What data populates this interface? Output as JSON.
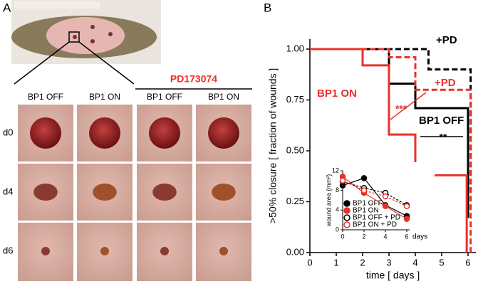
{
  "panel_a": {
    "label": "A",
    "treatment": "PD173074",
    "columns": [
      "BP1 OFF",
      "BP1 ON",
      "BP1 OFF",
      "BP1 ON"
    ],
    "rows": [
      "d0",
      "d4",
      "d6"
    ]
  },
  "panel_b": {
    "label": "B"
  },
  "chart_data": [
    {
      "type": "line",
      "step": true,
      "xlabel": "time [ days ]",
      "ylabel": ">50% closure [ fraction of wounds ]",
      "xlim": [
        0,
        6.3
      ],
      "xticks": [
        0,
        1,
        2,
        3,
        4,
        5,
        6
      ],
      "ylim": [
        0,
        1.05
      ],
      "yticks": [
        {
          "value": 0,
          "label": "0.00"
        },
        {
          "value": 0.25,
          "label": "0.25"
        },
        {
          "value": 0.5,
          "label": "0.50"
        },
        {
          "value": 0.75,
          "label": "0.75"
        },
        {
          "value": 1,
          "label": "1.00"
        }
      ],
      "series": [
        {
          "name": "BP1 OFF",
          "color": "#000000",
          "dashed": false,
          "x": [
            0,
            3,
            4,
            6
          ],
          "values": [
            1,
            0.83,
            0.71,
            0.17
          ]
        },
        {
          "name": "BP1 ON",
          "color": "#e8312a",
          "dashed": false,
          "x": [
            0,
            2,
            3,
            4,
            5.95
          ],
          "values": [
            1,
            0.92,
            0.58,
            0.38,
            0
          ]
        },
        {
          "name": "+PD",
          "color": "#000000",
          "dashed": true,
          "x": [
            0,
            4.5,
            6.1
          ],
          "values": [
            1,
            0.9,
            0.3
          ]
        },
        {
          "name": "+PD",
          "color": "#e8312a",
          "dashed": true,
          "x": [
            0,
            3,
            4,
            6.1
          ],
          "values": [
            1,
            0.96,
            0.8,
            0
          ]
        }
      ],
      "annotations": [
        "***",
        "**"
      ]
    },
    {
      "type": "line",
      "xlabel": "days",
      "ylabel": "wound area (mm²)",
      "xlim": [
        0,
        6
      ],
      "xticks": [
        0,
        2,
        4,
        6
      ],
      "ylim": [
        0,
        12
      ],
      "yticks": [
        0,
        4,
        8,
        12
      ],
      "series": [
        {
          "name": "BP1 OFF",
          "color": "#000000",
          "filled": true,
          "dashed": false,
          "x": [
            0,
            2,
            4,
            6
          ],
          "values": [
            9,
            10.5,
            5,
            2.8
          ]
        },
        {
          "name": "BP1 ON",
          "color": "#e8312a",
          "filled": true,
          "dashed": false,
          "x": [
            0,
            2,
            4,
            6
          ],
          "values": [
            10.8,
            7.5,
            4.8,
            2.2
          ]
        },
        {
          "name": "BP1 OFF + PD",
          "color": "#000000",
          "filled": false,
          "dashed": true,
          "x": [
            0,
            2,
            4,
            6
          ],
          "values": [
            9.8,
            8.5,
            7.5,
            5
          ]
        },
        {
          "name": "BP1 ON + PD",
          "color": "#e8312a",
          "filled": false,
          "dashed": true,
          "x": [
            0,
            2,
            4,
            6
          ],
          "values": [
            10,
            8,
            6.8,
            4.8
          ]
        }
      ]
    }
  ]
}
